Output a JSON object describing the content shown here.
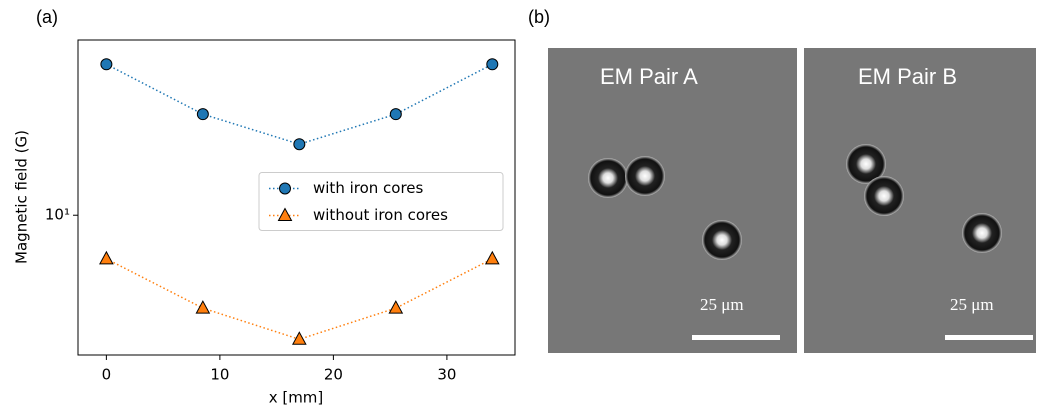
{
  "chart_data": {
    "type": "line",
    "xlabel": "x [mm]",
    "ylabel": "Magnetic field (G)",
    "x": [
      0,
      8.5,
      17,
      25.5,
      34
    ],
    "series": [
      {
        "name": "with iron cores",
        "color": "#1f77b4",
        "marker": "circle",
        "values": [
          40,
          25.3,
          19.2,
          25.3,
          40
        ]
      },
      {
        "name": "without iron cores",
        "color": "#ff7f0e",
        "marker": "triangle",
        "values": [
          6.7,
          4.26,
          3.2,
          4.26,
          6.7
        ]
      }
    ],
    "xlim": [
      -2.5,
      36
    ],
    "ylim": [
      2.77,
      50
    ],
    "ylog": true,
    "xticks": [
      0,
      10,
      20,
      30
    ],
    "yticks": [
      {
        "value": 10,
        "label": "10¹"
      }
    ],
    "legend": "center right"
  },
  "panel_labels": [
    "(a)",
    "(b)"
  ],
  "images": [
    {
      "title": "EM Pair A",
      "scale_bar": "25 μm"
    },
    {
      "title": "EM Pair B",
      "scale_bar": "25 μm"
    }
  ]
}
